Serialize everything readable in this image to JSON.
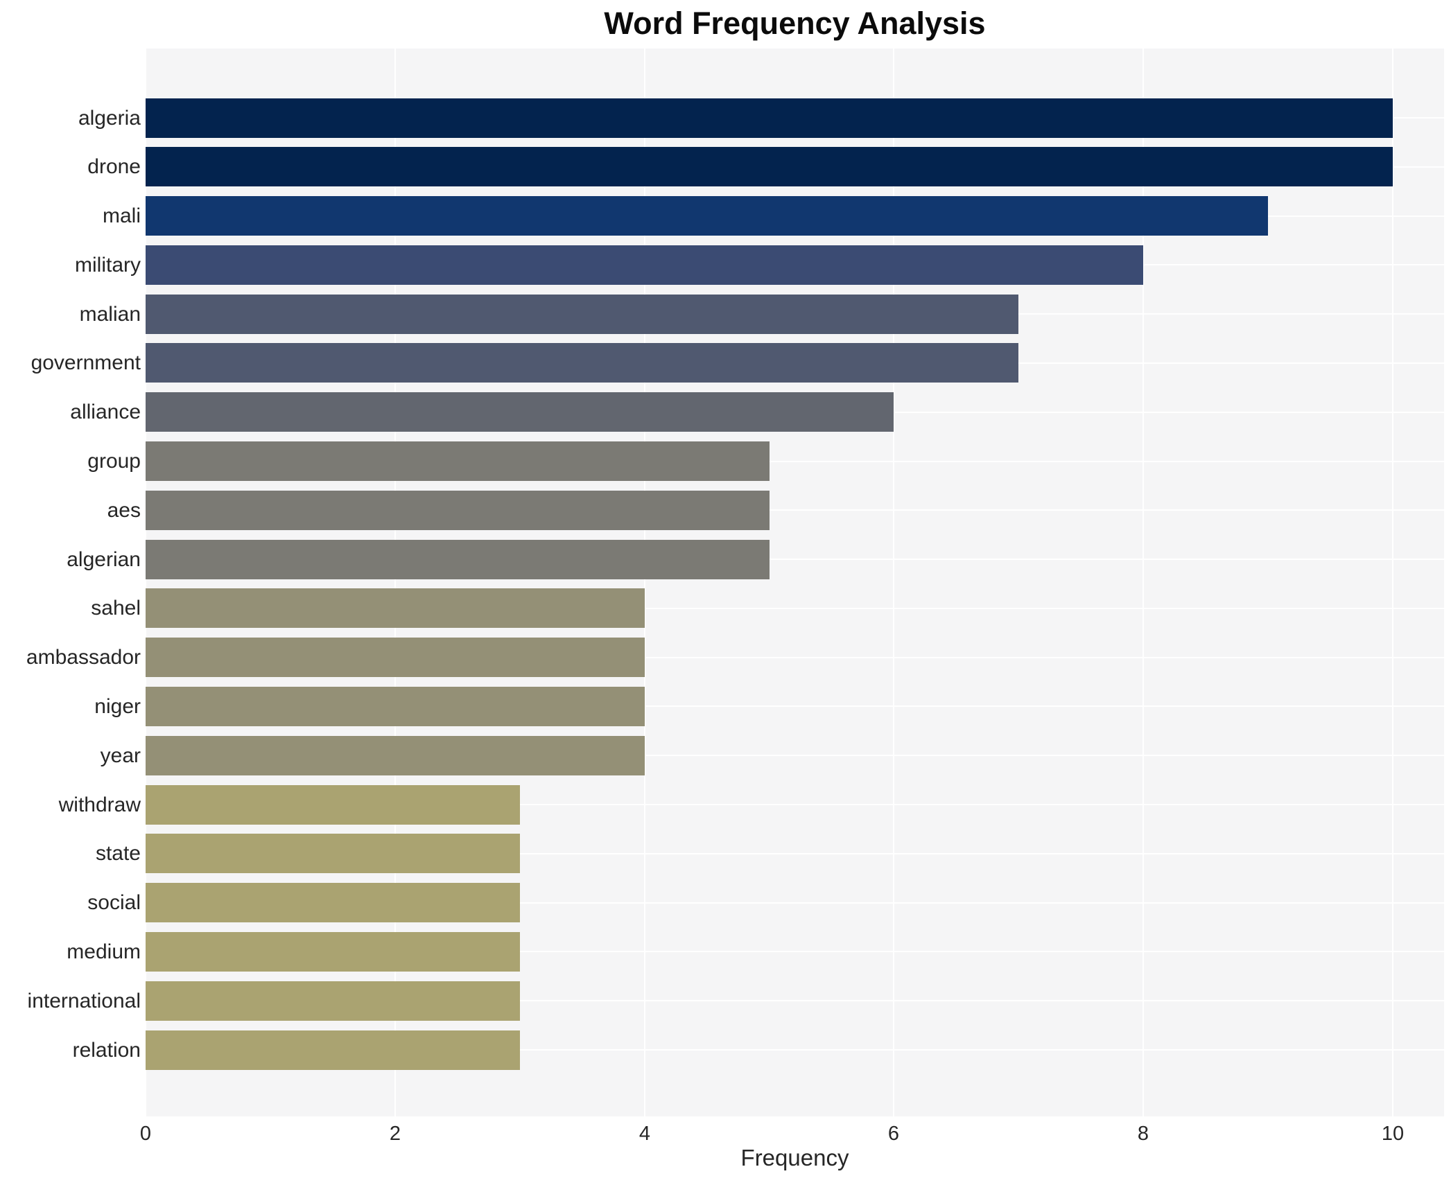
{
  "title": "Word Frequency Analysis",
  "chart_data": {
    "type": "bar",
    "orientation": "horizontal",
    "title": "Word Frequency Analysis",
    "xlabel": "Frequency",
    "ylabel": "",
    "categories": [
      "algeria",
      "drone",
      "mali",
      "military",
      "malian",
      "government",
      "alliance",
      "group",
      "aes",
      "algerian",
      "sahel",
      "ambassador",
      "niger",
      "year",
      "withdraw",
      "state",
      "social",
      "medium",
      "international",
      "relation"
    ],
    "values": [
      10,
      10,
      9,
      8,
      7,
      7,
      6,
      5,
      5,
      5,
      4,
      4,
      4,
      4,
      3,
      3,
      3,
      3,
      3,
      3
    ],
    "bar_colors": [
      "#03234e",
      "#03234e",
      "#11376f",
      "#3b4b73",
      "#505970",
      "#505970",
      "#62666f",
      "#7b7a74",
      "#7b7a74",
      "#7b7a74",
      "#949076",
      "#949076",
      "#949076",
      "#949076",
      "#aaa371",
      "#aaa371",
      "#aaa371",
      "#aaa371",
      "#aaa371",
      "#aaa371"
    ],
    "xticks": [
      0,
      2,
      4,
      6,
      8,
      10
    ],
    "xlim": [
      0,
      10.4
    ],
    "grid": true,
    "gridline_color": "#ffffff",
    "plot_background": "#f5f5f6",
    "figure_background": "#ffffff",
    "legend": false
  }
}
